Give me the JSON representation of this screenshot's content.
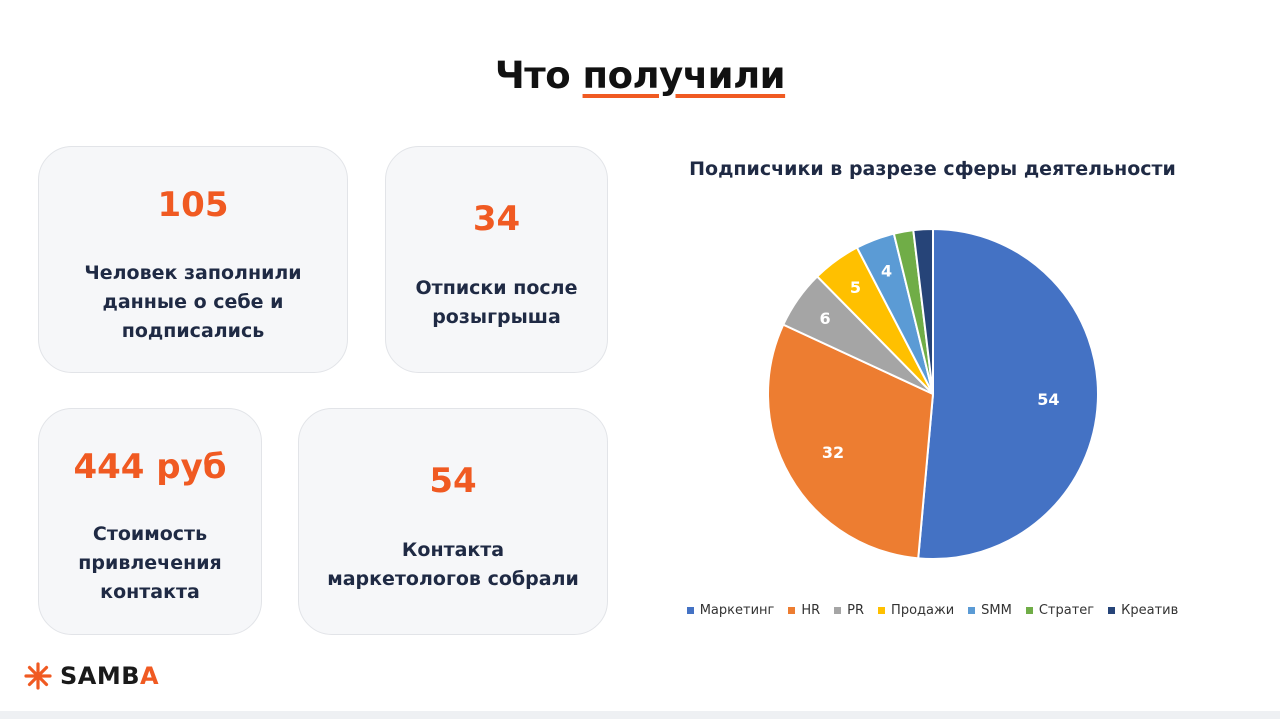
{
  "slide": {
    "title_plain": "Что",
    "title_underlined": "получили"
  },
  "cards": [
    {
      "value": "105",
      "text": "Человек заполнили данные о себе и подписались"
    },
    {
      "value": "34",
      "text": "Отписки после розыгрыша"
    },
    {
      "value": "444 руб",
      "text": "Стоимость привлечения контакта"
    },
    {
      "value": "54",
      "text": "Контакта маркетологов собрали"
    }
  ],
  "chart_data": {
    "type": "pie",
    "title": "Подписчики в разрезе сферы деятельности",
    "categories": [
      "Маркетинг",
      "HR",
      "PR",
      "Продажи",
      "SMM",
      "Стратег",
      "Креатив"
    ],
    "values": [
      54,
      32,
      6,
      5,
      4,
      2,
      2
    ],
    "data_labels": [
      "54",
      "32",
      "6",
      "5",
      "4",
      "",
      ""
    ],
    "colors": [
      "#4472c4",
      "#ed7d31",
      "#a5a5a5",
      "#ffc000",
      "#5b9bd5",
      "#70ad47",
      "#264478"
    ],
    "legend_position": "bottom",
    "start": "top, clockwise"
  },
  "brand": {
    "logo_text_main": "SAMB",
    "logo_text_accent": "A",
    "accent_color": "#f05a22",
    "icon": "asterisk-burst-icon"
  }
}
